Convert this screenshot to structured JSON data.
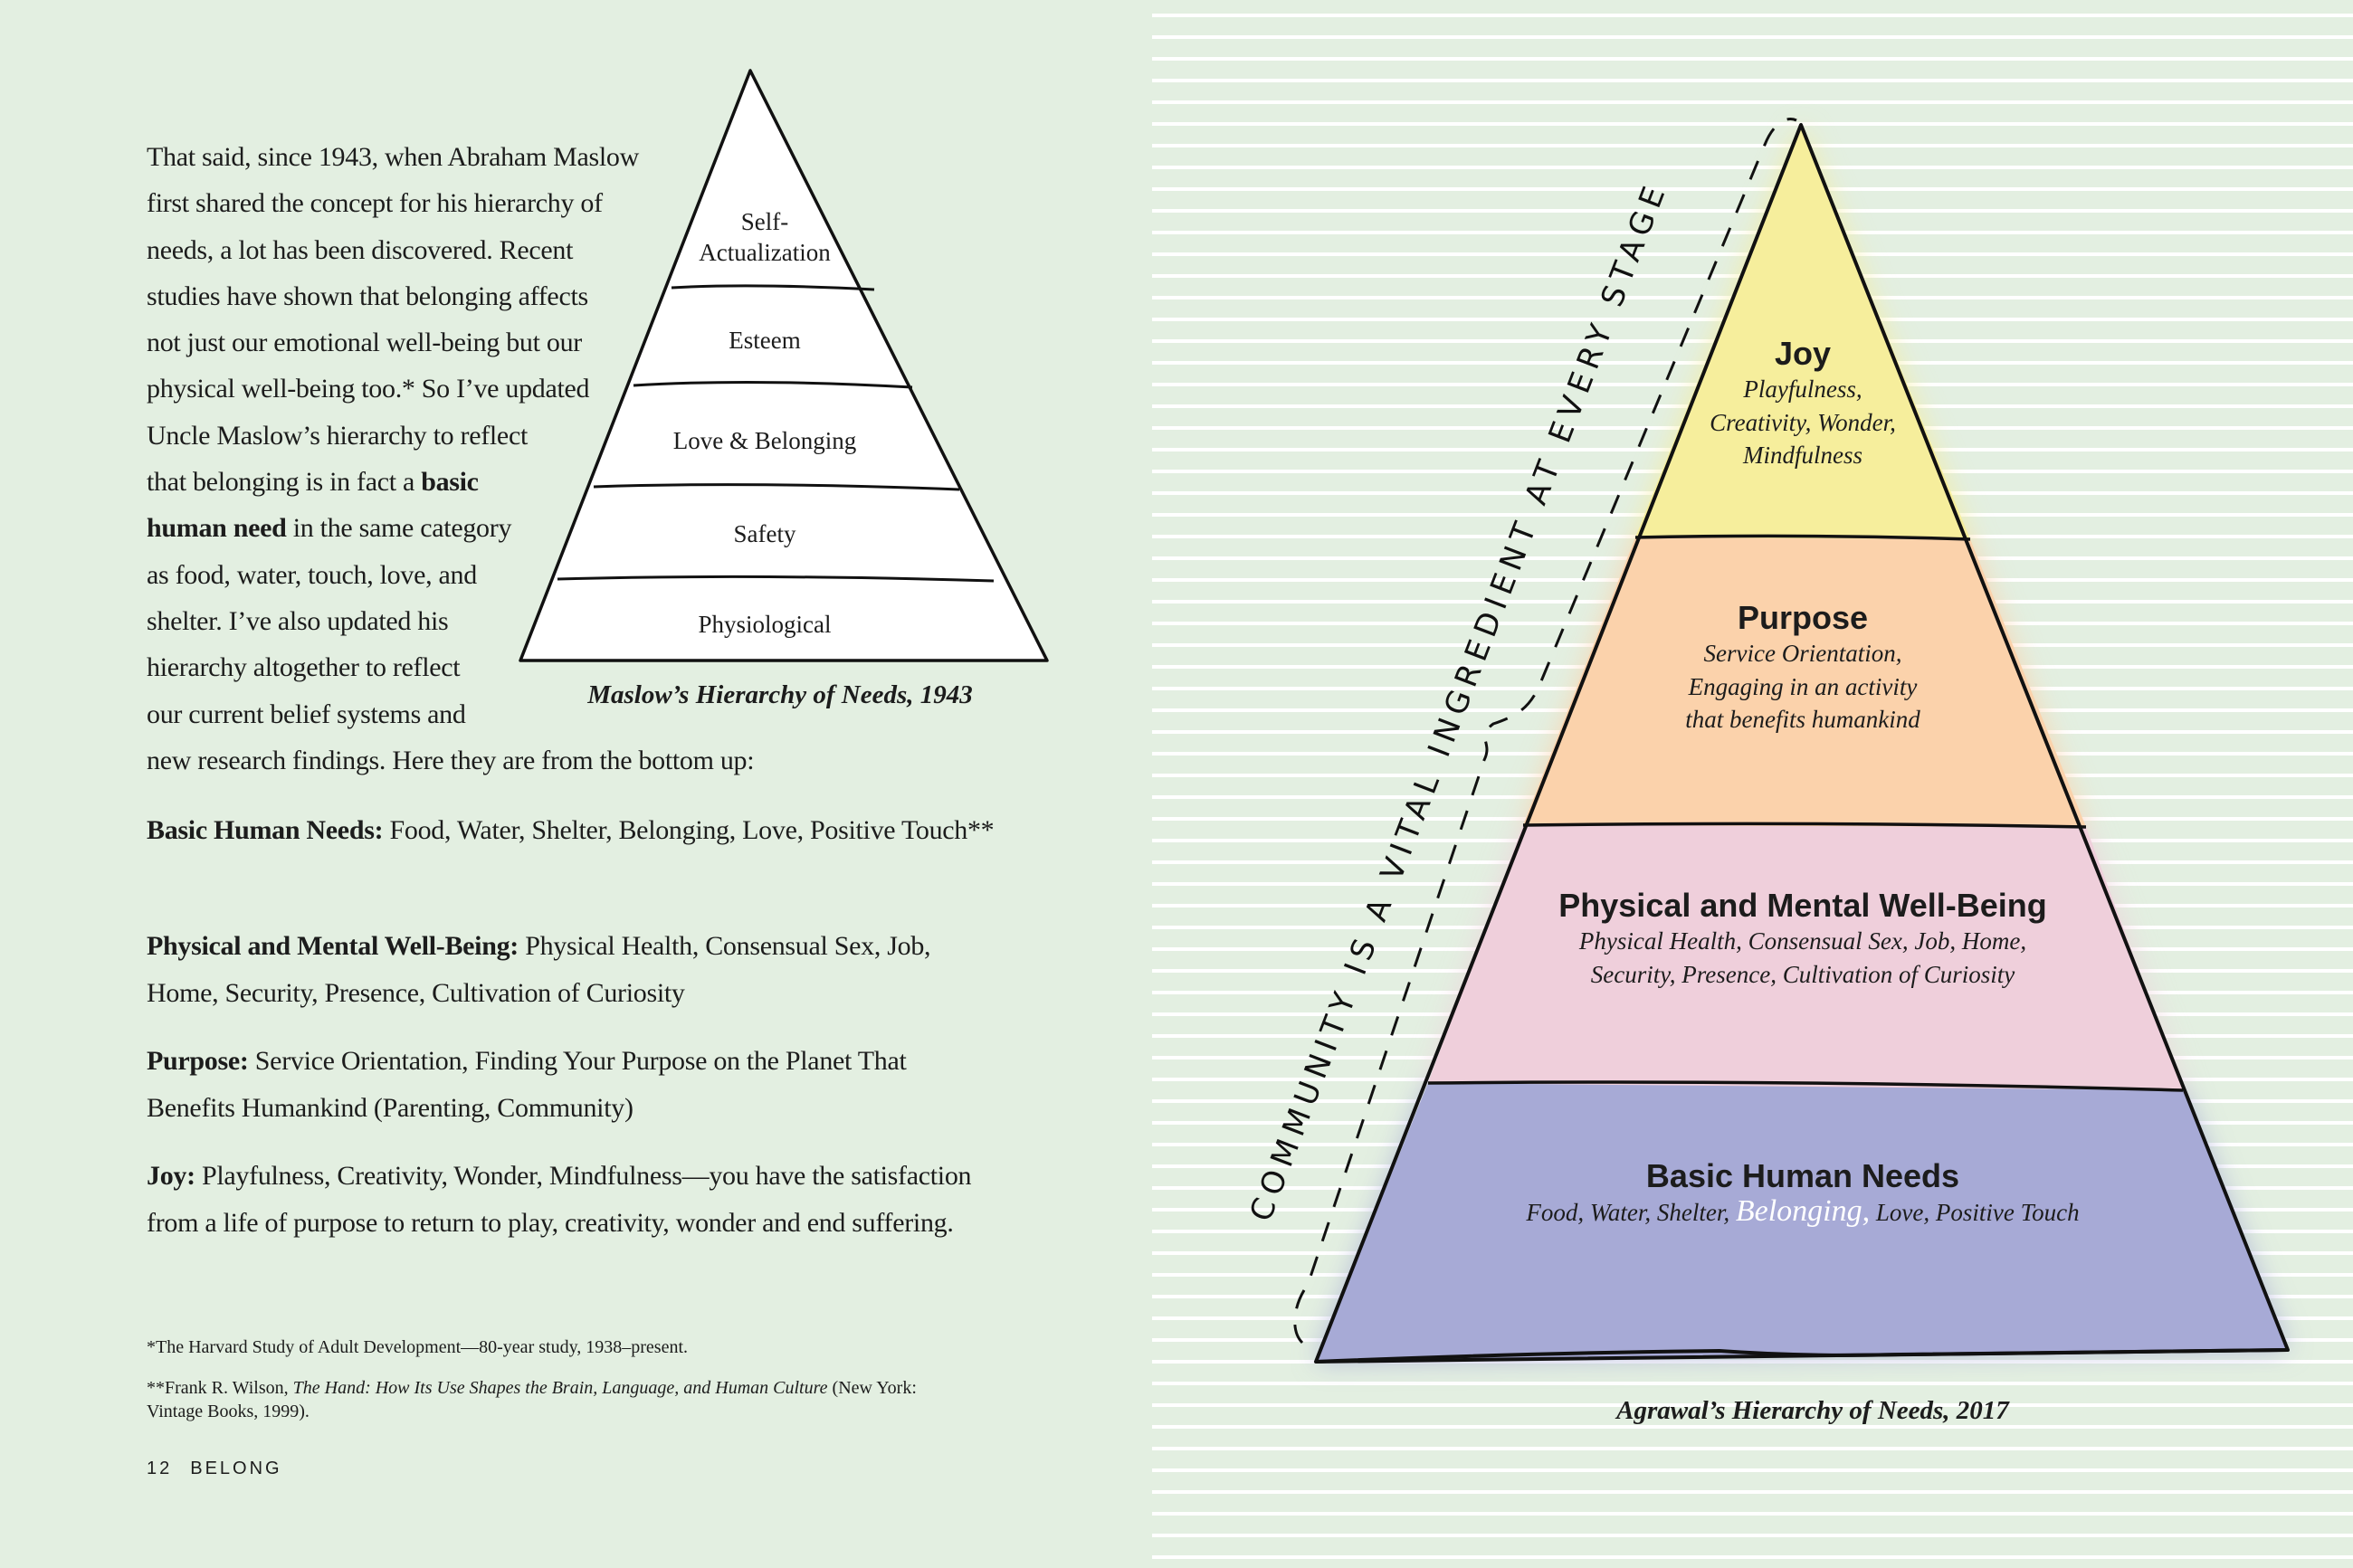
{
  "left_page": {
    "intro_lines": [
      {
        "pre": "That said, since 1943, when Abraham Maslow"
      },
      {
        "pre": "first shared the concept for his hierarchy of"
      },
      {
        "pre": "needs, a lot has been discovered. Recent"
      },
      {
        "pre": "studies have shown that belonging affects"
      },
      {
        "pre": "not just our emotional well-being but our"
      },
      {
        "pre": "physical well-being too.* So I’ve updated"
      },
      {
        "pre": "Uncle Maslow’s hierarchy to reflect"
      },
      {
        "pre": "that belonging is in fact a ",
        "bold": "basic"
      },
      {
        "bold": "human need",
        "post": " in the same category"
      },
      {
        "pre": "as food, water, touch, love, and"
      },
      {
        "pre": "shelter. I’ve also updated his"
      },
      {
        "pre": "hierarchy altogether to reflect"
      },
      {
        "pre": "our current belief systems and"
      },
      {
        "pre": "new research findings. Here they are from the bottom up:"
      }
    ],
    "definitions": [
      {
        "term": "Basic Human Needs:",
        "text": " Food, Water, Shelter, Belonging, Love, Positive Touch**"
      },
      {
        "term": "Physical and Mental Well-Being:",
        "text": " Physical Health, Consensual Sex, Job, Home, Security, Presence, Cultivation of Curiosity"
      },
      {
        "term": "Purpose:",
        "text": " Service Orientation, Finding Your Purpose on the Planet That Benefits Humankind (Parenting, Community)"
      },
      {
        "term": "Joy:",
        "text": " Playfulness, Creativity, Wonder, Mindfulness—you have the satisfaction from a life of purpose to return to play, creativity, wonder and end suffering."
      }
    ],
    "footnotes": {
      "one": "*The Harvard Study of Adult Development—80-year study, 1938–present.",
      "two_pre": "**Frank R. Wilson, ",
      "two_italic": "The Hand: How Its Use Shapes the Brain, Language, and Human Culture",
      "two_post": " (New York: Vintage Books, 1999)."
    },
    "folio": {
      "page": "12",
      "title": "BELONG"
    },
    "maslow": {
      "levels": [
        "Self-\nActualization",
        "Esteem",
        "Love & Belonging",
        "Safety",
        "Physiological"
      ],
      "caption": "Maslow’s Hierarchy of Needs, 1943"
    }
  },
  "right_page": {
    "vertical_text": "COMMUNITY IS A VITAL INGREDIENT AT EVERY STAGE",
    "tiers": [
      {
        "title": "Joy",
        "lines": [
          "Playfulness,",
          "Creativity, Wonder,",
          "Mindfulness"
        ],
        "color": "#f6ee9c"
      },
      {
        "title": "Purpose",
        "lines": [
          "Service Orientation,",
          "Engaging in an activity",
          "that benefits humankind"
        ],
        "color": "#fbd2ab"
      },
      {
        "title": "Physical and Mental Well-Being",
        "lines": [
          "Physical Health, Consensual Sex, Job, Home,",
          "Security, Presence, Cultivation of Curiosity"
        ],
        "color": "#efcfdb"
      },
      {
        "title": "Basic Human Needs",
        "pre": "Food, Water, Shelter, ",
        "highlight": "Belonging,",
        "post": " Love, Positive Touch",
        "color": "#a7aad6"
      }
    ],
    "caption": "Agrawal’s Hierarchy of Needs, 2017"
  },
  "colors": {
    "background": "#e3efe1",
    "ruled_line": "#ffffff"
  }
}
